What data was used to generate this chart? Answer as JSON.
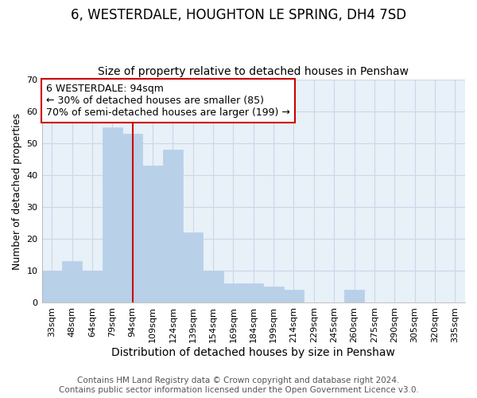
{
  "title": "6, WESTERDALE, HOUGHTON LE SPRING, DH4 7SD",
  "subtitle": "Size of property relative to detached houses in Penshaw",
  "xlabel": "Distribution of detached houses by size in Penshaw",
  "ylabel": "Number of detached properties",
  "categories": [
    "33sqm",
    "48sqm",
    "64sqm",
    "79sqm",
    "94sqm",
    "109sqm",
    "124sqm",
    "139sqm",
    "154sqm",
    "169sqm",
    "184sqm",
    "199sqm",
    "214sqm",
    "229sqm",
    "245sqm",
    "260sqm",
    "275sqm",
    "290sqm",
    "305sqm",
    "320sqm",
    "335sqm"
  ],
  "values": [
    10,
    13,
    10,
    55,
    53,
    43,
    48,
    22,
    10,
    6,
    6,
    5,
    4,
    0,
    0,
    4,
    0,
    0,
    0,
    0,
    0
  ],
  "bar_color": "#b8d0e8",
  "bar_edgecolor": "#b8d0e8",
  "bar_linewidth": 0.5,
  "vline_x": 4.5,
  "vline_color": "#cc0000",
  "vline_linewidth": 1.5,
  "annotation_title": "6 WESTERDALE: 94sqm",
  "annotation_line1": "← 30% of detached houses are smaller (85)",
  "annotation_line2": "70% of semi-detached houses are larger (199) →",
  "annotation_box_edgecolor": "#cc0000",
  "annotation_box_facecolor": "#ffffff",
  "ylim": [
    0,
    70
  ],
  "yticks": [
    0,
    10,
    20,
    30,
    40,
    50,
    60,
    70
  ],
  "bg_color": "#ffffff",
  "plot_bg_color": "#e8f0f8",
  "grid_color": "#c8d8e8",
  "footer_line1": "Contains HM Land Registry data © Crown copyright and database right 2024.",
  "footer_line2": "Contains public sector information licensed under the Open Government Licence v3.0.",
  "title_fontsize": 12,
  "subtitle_fontsize": 10,
  "xlabel_fontsize": 10,
  "ylabel_fontsize": 9,
  "tick_fontsize": 8,
  "annotation_fontsize": 9,
  "footer_fontsize": 7.5
}
